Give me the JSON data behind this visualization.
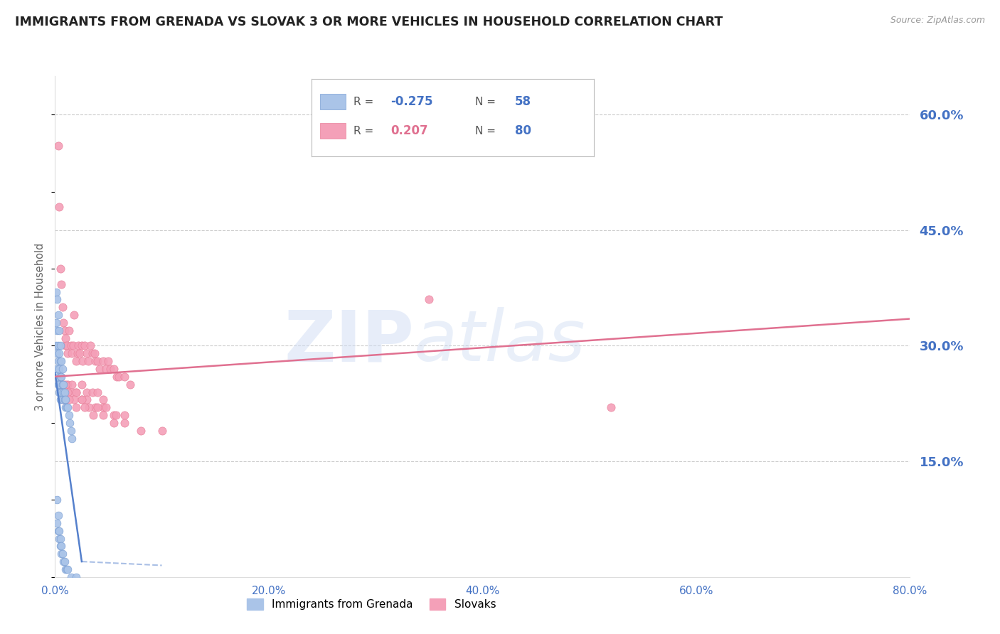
{
  "title": "IMMIGRANTS FROM GRENADA VS SLOVAK 3 OR MORE VEHICLES IN HOUSEHOLD CORRELATION CHART",
  "source": "Source: ZipAtlas.com",
  "ylabel": "3 or more Vehicles in Household",
  "xlabel_ticks": [
    "0.0%",
    "20.0%",
    "40.0%",
    "60.0%",
    "80.0%"
  ],
  "xlabel_vals": [
    0.0,
    0.2,
    0.4,
    0.6,
    0.8
  ],
  "ylabel_right_ticks": [
    "60.0%",
    "45.0%",
    "30.0%",
    "15.0%"
  ],
  "ylabel_right_vals": [
    0.6,
    0.45,
    0.3,
    0.15
  ],
  "xlim": [
    0.0,
    0.8
  ],
  "ylim": [
    0.0,
    0.65
  ],
  "series1_label": "Immigrants from Grenada",
  "series1_R": "-0.275",
  "series1_N": "58",
  "series1_color": "#aac4e8",
  "series1_edge": "#7a9fd4",
  "series2_label": "Slovaks",
  "series2_R": "0.207",
  "series2_N": "80",
  "series2_color": "#f4a0b8",
  "series2_edge": "#e8809a",
  "line1_color": "#5580cc",
  "line2_color": "#e07090",
  "title_color": "#222222",
  "axis_label_color": "#4472c4",
  "background_color": "#ffffff",
  "grid_color": "#cccccc",
  "series1_x": [
    0.001,
    0.001,
    0.001,
    0.002,
    0.002,
    0.002,
    0.002,
    0.003,
    0.003,
    0.003,
    0.003,
    0.003,
    0.004,
    0.004,
    0.004,
    0.004,
    0.004,
    0.005,
    0.005,
    0.005,
    0.005,
    0.005,
    0.006,
    0.006,
    0.006,
    0.007,
    0.007,
    0.007,
    0.008,
    0.008,
    0.009,
    0.009,
    0.01,
    0.01,
    0.011,
    0.012,
    0.013,
    0.014,
    0.015,
    0.016,
    0.002,
    0.002,
    0.003,
    0.003,
    0.004,
    0.004,
    0.005,
    0.005,
    0.006,
    0.006,
    0.007,
    0.008,
    0.009,
    0.01,
    0.011,
    0.012,
    0.015,
    0.02
  ],
  "series1_y": [
    0.37,
    0.33,
    0.3,
    0.36,
    0.32,
    0.29,
    0.27,
    0.34,
    0.3,
    0.28,
    0.26,
    0.25,
    0.32,
    0.29,
    0.27,
    0.25,
    0.24,
    0.3,
    0.28,
    0.26,
    0.24,
    0.23,
    0.28,
    0.26,
    0.24,
    0.27,
    0.25,
    0.23,
    0.25,
    0.24,
    0.24,
    0.23,
    0.23,
    0.22,
    0.22,
    0.22,
    0.21,
    0.2,
    0.19,
    0.18,
    0.1,
    0.07,
    0.08,
    0.06,
    0.06,
    0.05,
    0.05,
    0.04,
    0.04,
    0.03,
    0.03,
    0.02,
    0.02,
    0.01,
    0.01,
    0.01,
    0.0,
    0.0
  ],
  "series2_x": [
    0.003,
    0.004,
    0.005,
    0.006,
    0.007,
    0.008,
    0.009,
    0.01,
    0.01,
    0.011,
    0.012,
    0.013,
    0.015,
    0.016,
    0.017,
    0.018,
    0.02,
    0.021,
    0.022,
    0.023,
    0.025,
    0.026,
    0.028,
    0.03,
    0.031,
    0.033,
    0.035,
    0.037,
    0.038,
    0.04,
    0.042,
    0.045,
    0.048,
    0.05,
    0.052,
    0.055,
    0.058,
    0.06,
    0.065,
    0.07,
    0.005,
    0.008,
    0.012,
    0.016,
    0.02,
    0.025,
    0.03,
    0.035,
    0.04,
    0.045,
    0.006,
    0.01,
    0.015,
    0.02,
    0.025,
    0.03,
    0.038,
    0.045,
    0.055,
    0.065,
    0.007,
    0.012,
    0.018,
    0.025,
    0.032,
    0.04,
    0.048,
    0.057,
    0.35,
    0.52,
    0.008,
    0.013,
    0.02,
    0.028,
    0.036,
    0.045,
    0.055,
    0.065,
    0.08,
    0.1
  ],
  "series2_y": [
    0.56,
    0.48,
    0.4,
    0.38,
    0.35,
    0.33,
    0.32,
    0.3,
    0.31,
    0.3,
    0.29,
    0.32,
    0.3,
    0.29,
    0.3,
    0.34,
    0.28,
    0.29,
    0.3,
    0.29,
    0.3,
    0.28,
    0.3,
    0.29,
    0.28,
    0.3,
    0.29,
    0.29,
    0.28,
    0.28,
    0.27,
    0.28,
    0.27,
    0.28,
    0.27,
    0.27,
    0.26,
    0.26,
    0.26,
    0.25,
    0.26,
    0.25,
    0.25,
    0.25,
    0.24,
    0.25,
    0.24,
    0.24,
    0.24,
    0.23,
    0.25,
    0.25,
    0.24,
    0.24,
    0.23,
    0.23,
    0.22,
    0.22,
    0.21,
    0.21,
    0.24,
    0.24,
    0.23,
    0.23,
    0.22,
    0.22,
    0.22,
    0.21,
    0.36,
    0.22,
    0.23,
    0.23,
    0.22,
    0.22,
    0.21,
    0.21,
    0.2,
    0.2,
    0.19,
    0.19
  ],
  "line1_x0": 0.0,
  "line1_x1": 0.025,
  "line1_y0": 0.265,
  "line1_y1": 0.02,
  "line2_x0": 0.0,
  "line2_x1": 0.8,
  "line2_y0": 0.26,
  "line2_y1": 0.335
}
